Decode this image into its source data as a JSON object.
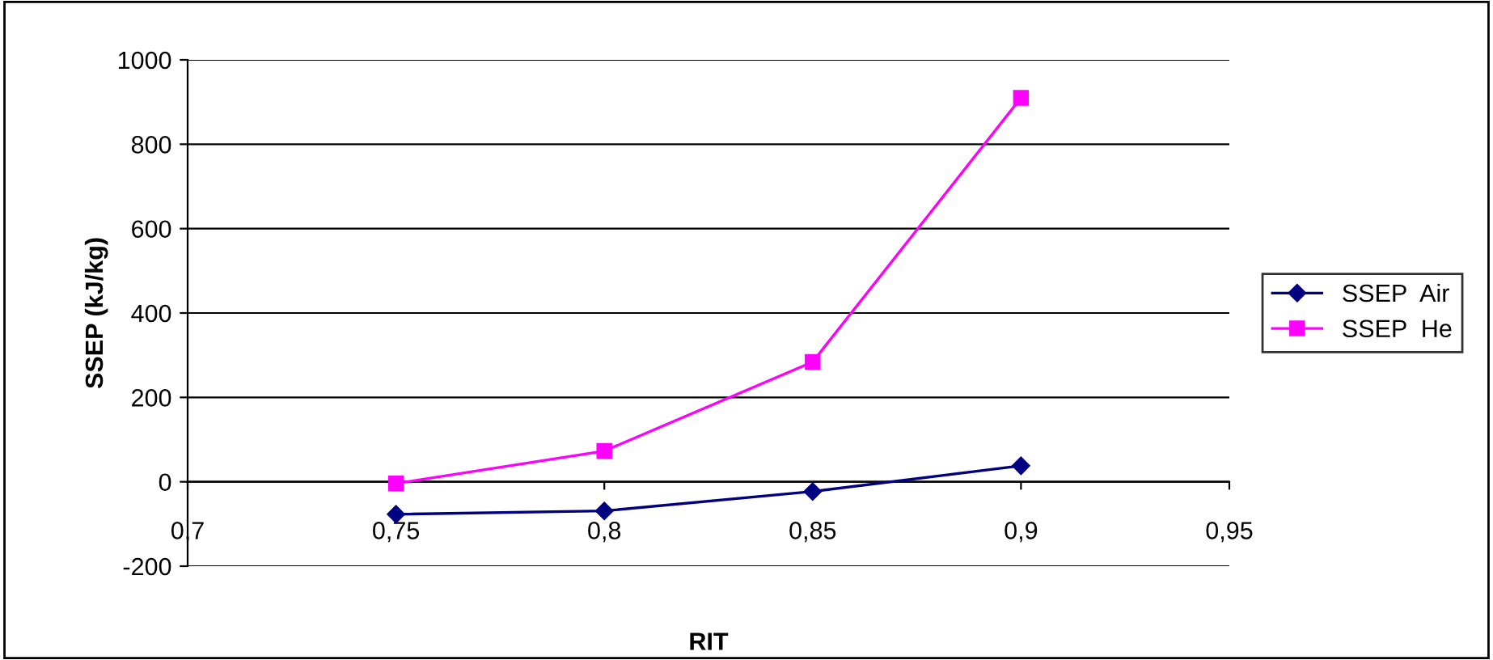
{
  "chart_data": {
    "type": "line",
    "xlabel": "RIT",
    "ylabel": "SSEP (kJ/kg)",
    "x": [
      0.75,
      0.8,
      0.85,
      0.9
    ],
    "series": [
      {
        "name": "SSEP  Air",
        "color": "#000080",
        "marker": "diamond",
        "values": [
          -77,
          -69,
          -23,
          38
        ]
      },
      {
        "name": "SSEP  He",
        "color": "#ff00ff",
        "marker": "square",
        "values": [
          -4,
          73,
          284,
          910
        ]
      }
    ],
    "xlim": [
      0.7,
      0.95
    ],
    "xticks": [
      {
        "value": 0.7,
        "label": "0,7"
      },
      {
        "value": 0.75,
        "label": "0,75"
      },
      {
        "value": 0.8,
        "label": "0,8"
      },
      {
        "value": 0.85,
        "label": "0,85"
      },
      {
        "value": 0.9,
        "label": "0,9"
      },
      {
        "value": 0.95,
        "label": "0,95"
      }
    ],
    "ylim": [
      -200,
      1000
    ],
    "yticks": [
      -200,
      0,
      200,
      400,
      600,
      800,
      1000
    ],
    "grid": "y",
    "legend": "right",
    "line_style": "solid"
  }
}
